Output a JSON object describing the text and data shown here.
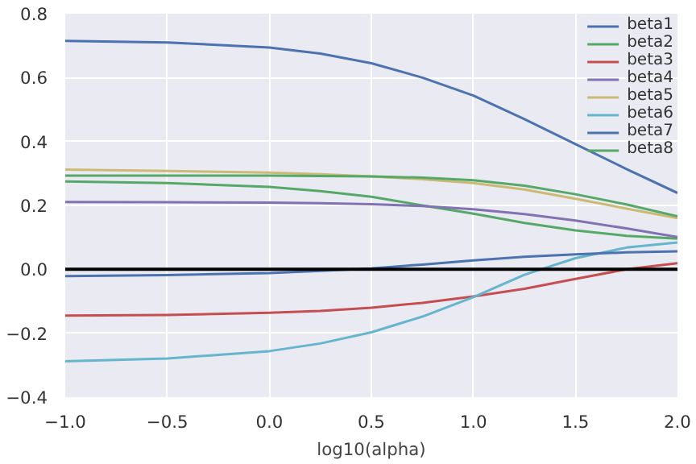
{
  "chart_data": {
    "type": "line",
    "xlabel": "log10(alpha)",
    "x": [
      -1,
      -0.5,
      0,
      0.25,
      0.5,
      0.75,
      1,
      1.25,
      1.5,
      1.75,
      2
    ],
    "series": [
      {
        "name": "beta1",
        "color": "#4c72b0",
        "values": [
          0.715,
          0.71,
          0.694,
          0.675,
          0.645,
          0.6,
          0.544,
          0.47,
          0.392,
          0.314,
          0.239
        ]
      },
      {
        "name": "beta2",
        "color": "#55a868",
        "values": [
          0.275,
          0.27,
          0.258,
          0.245,
          0.227,
          0.2,
          0.174,
          0.145,
          0.122,
          0.105,
          0.096
        ]
      },
      {
        "name": "beta3",
        "color": "#c44e52",
        "values": [
          -0.145,
          -0.143,
          -0.136,
          -0.13,
          -0.12,
          -0.105,
          -0.085,
          -0.061,
          -0.03,
          0,
          0.019
        ]
      },
      {
        "name": "beta4",
        "color": "#8172b2",
        "values": [
          0.211,
          0.21,
          0.209,
          0.207,
          0.204,
          0.198,
          0.188,
          0.173,
          0.153,
          0.128,
          0.101
        ]
      },
      {
        "name": "beta5",
        "color": "#ccb974",
        "values": [
          0.312,
          0.308,
          0.303,
          0.298,
          0.291,
          0.282,
          0.27,
          0.25,
          0.221,
          0.19,
          0.16
        ]
      },
      {
        "name": "beta6",
        "color": "#64b5cd",
        "values": [
          -0.288,
          -0.279,
          -0.256,
          -0.232,
          -0.197,
          -0.148,
          -0.087,
          -0.017,
          0.035,
          0.068,
          0.084
        ]
      },
      {
        "name": "beta7",
        "color": "#4c72b0",
        "values": [
          -0.021,
          -0.018,
          -0.012,
          -0.005,
          0.003,
          0.015,
          0.028,
          0.039,
          0.047,
          0.053,
          0.056
        ]
      },
      {
        "name": "beta8",
        "color": "#55a868",
        "values": [
          0.293,
          0.293,
          0.293,
          0.292,
          0.291,
          0.287,
          0.279,
          0.262,
          0.235,
          0.203,
          0.166
        ]
      }
    ],
    "xlim": [
      -1,
      2
    ],
    "ylim": [
      -0.4,
      0.8
    ],
    "xticks": [
      {
        "value": -1,
        "label": "−1.0"
      },
      {
        "value": -0.5,
        "label": "−0.5"
      },
      {
        "value": 0,
        "label": "0.0"
      },
      {
        "value": 0.5,
        "label": "0.5"
      },
      {
        "value": 1,
        "label": "1.0"
      },
      {
        "value": 1.5,
        "label": "1.5"
      },
      {
        "value": 2,
        "label": "2.0"
      }
    ],
    "yticks": [
      {
        "value": -0.4,
        "label": "−0.4"
      },
      {
        "value": -0.2,
        "label": "−0.2"
      },
      {
        "value": 0,
        "label": "0.0"
      },
      {
        "value": 0.2,
        "label": "0.2"
      },
      {
        "value": 0.4,
        "label": "0.4"
      },
      {
        "value": 0.6,
        "label": "0.6"
      },
      {
        "value": 0.8,
        "label": "0.8"
      }
    ],
    "ref_lines": [
      {
        "axis": "y",
        "value": 0,
        "color": "#000000"
      }
    ],
    "grid": true,
    "legend": "top right"
  }
}
